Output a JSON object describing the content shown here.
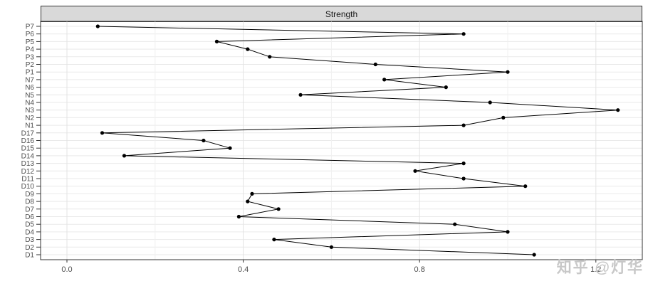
{
  "chart_data": {
    "type": "line",
    "title": "Strength",
    "orientation": "horizontal-categories",
    "categories": [
      "P7",
      "P6",
      "P5",
      "P4",
      "P3",
      "P2",
      "P1",
      "N7",
      "N6",
      "N5",
      "N4",
      "N3",
      "N2",
      "N1",
      "D17",
      "D16",
      "D15",
      "D14",
      "D13",
      "D12",
      "D11",
      "D10",
      "D9",
      "D8",
      "D7",
      "D6",
      "D5",
      "D4",
      "D3",
      "D2",
      "D1"
    ],
    "values": [
      0.07,
      0.9,
      0.34,
      0.41,
      0.46,
      0.7,
      1.0,
      0.72,
      0.86,
      0.53,
      0.96,
      1.25,
      0.99,
      0.9,
      0.08,
      0.31,
      0.37,
      0.13,
      0.9,
      0.79,
      0.9,
      1.04,
      0.42,
      0.41,
      0.48,
      0.39,
      0.88,
      1.0,
      0.47,
      0.6,
      1.06
    ],
    "x_ticks": [
      "0.0",
      "0.4",
      "0.8",
      "1.2"
    ],
    "x_tick_values": [
      0.0,
      0.4,
      0.8,
      1.2
    ],
    "x_minor_tick_values": [
      0.2,
      0.6,
      1.0
    ],
    "xlim": [
      -0.06,
      1.31
    ],
    "grid": "on",
    "legend": "none",
    "line_color": "#000000",
    "point_color": "#000000",
    "strip_bg": "#d9d9d9",
    "panel_border_color": "#333333",
    "major_grid_color": "#e3e3e3",
    "minor_grid_color": "#f0f0f0",
    "row_grid_color": "#e9e9e9",
    "axis_text_color": "#4d4d4d",
    "tick_mark_color": "#333333"
  },
  "watermark": {
    "text": "知乎 @灯华"
  }
}
